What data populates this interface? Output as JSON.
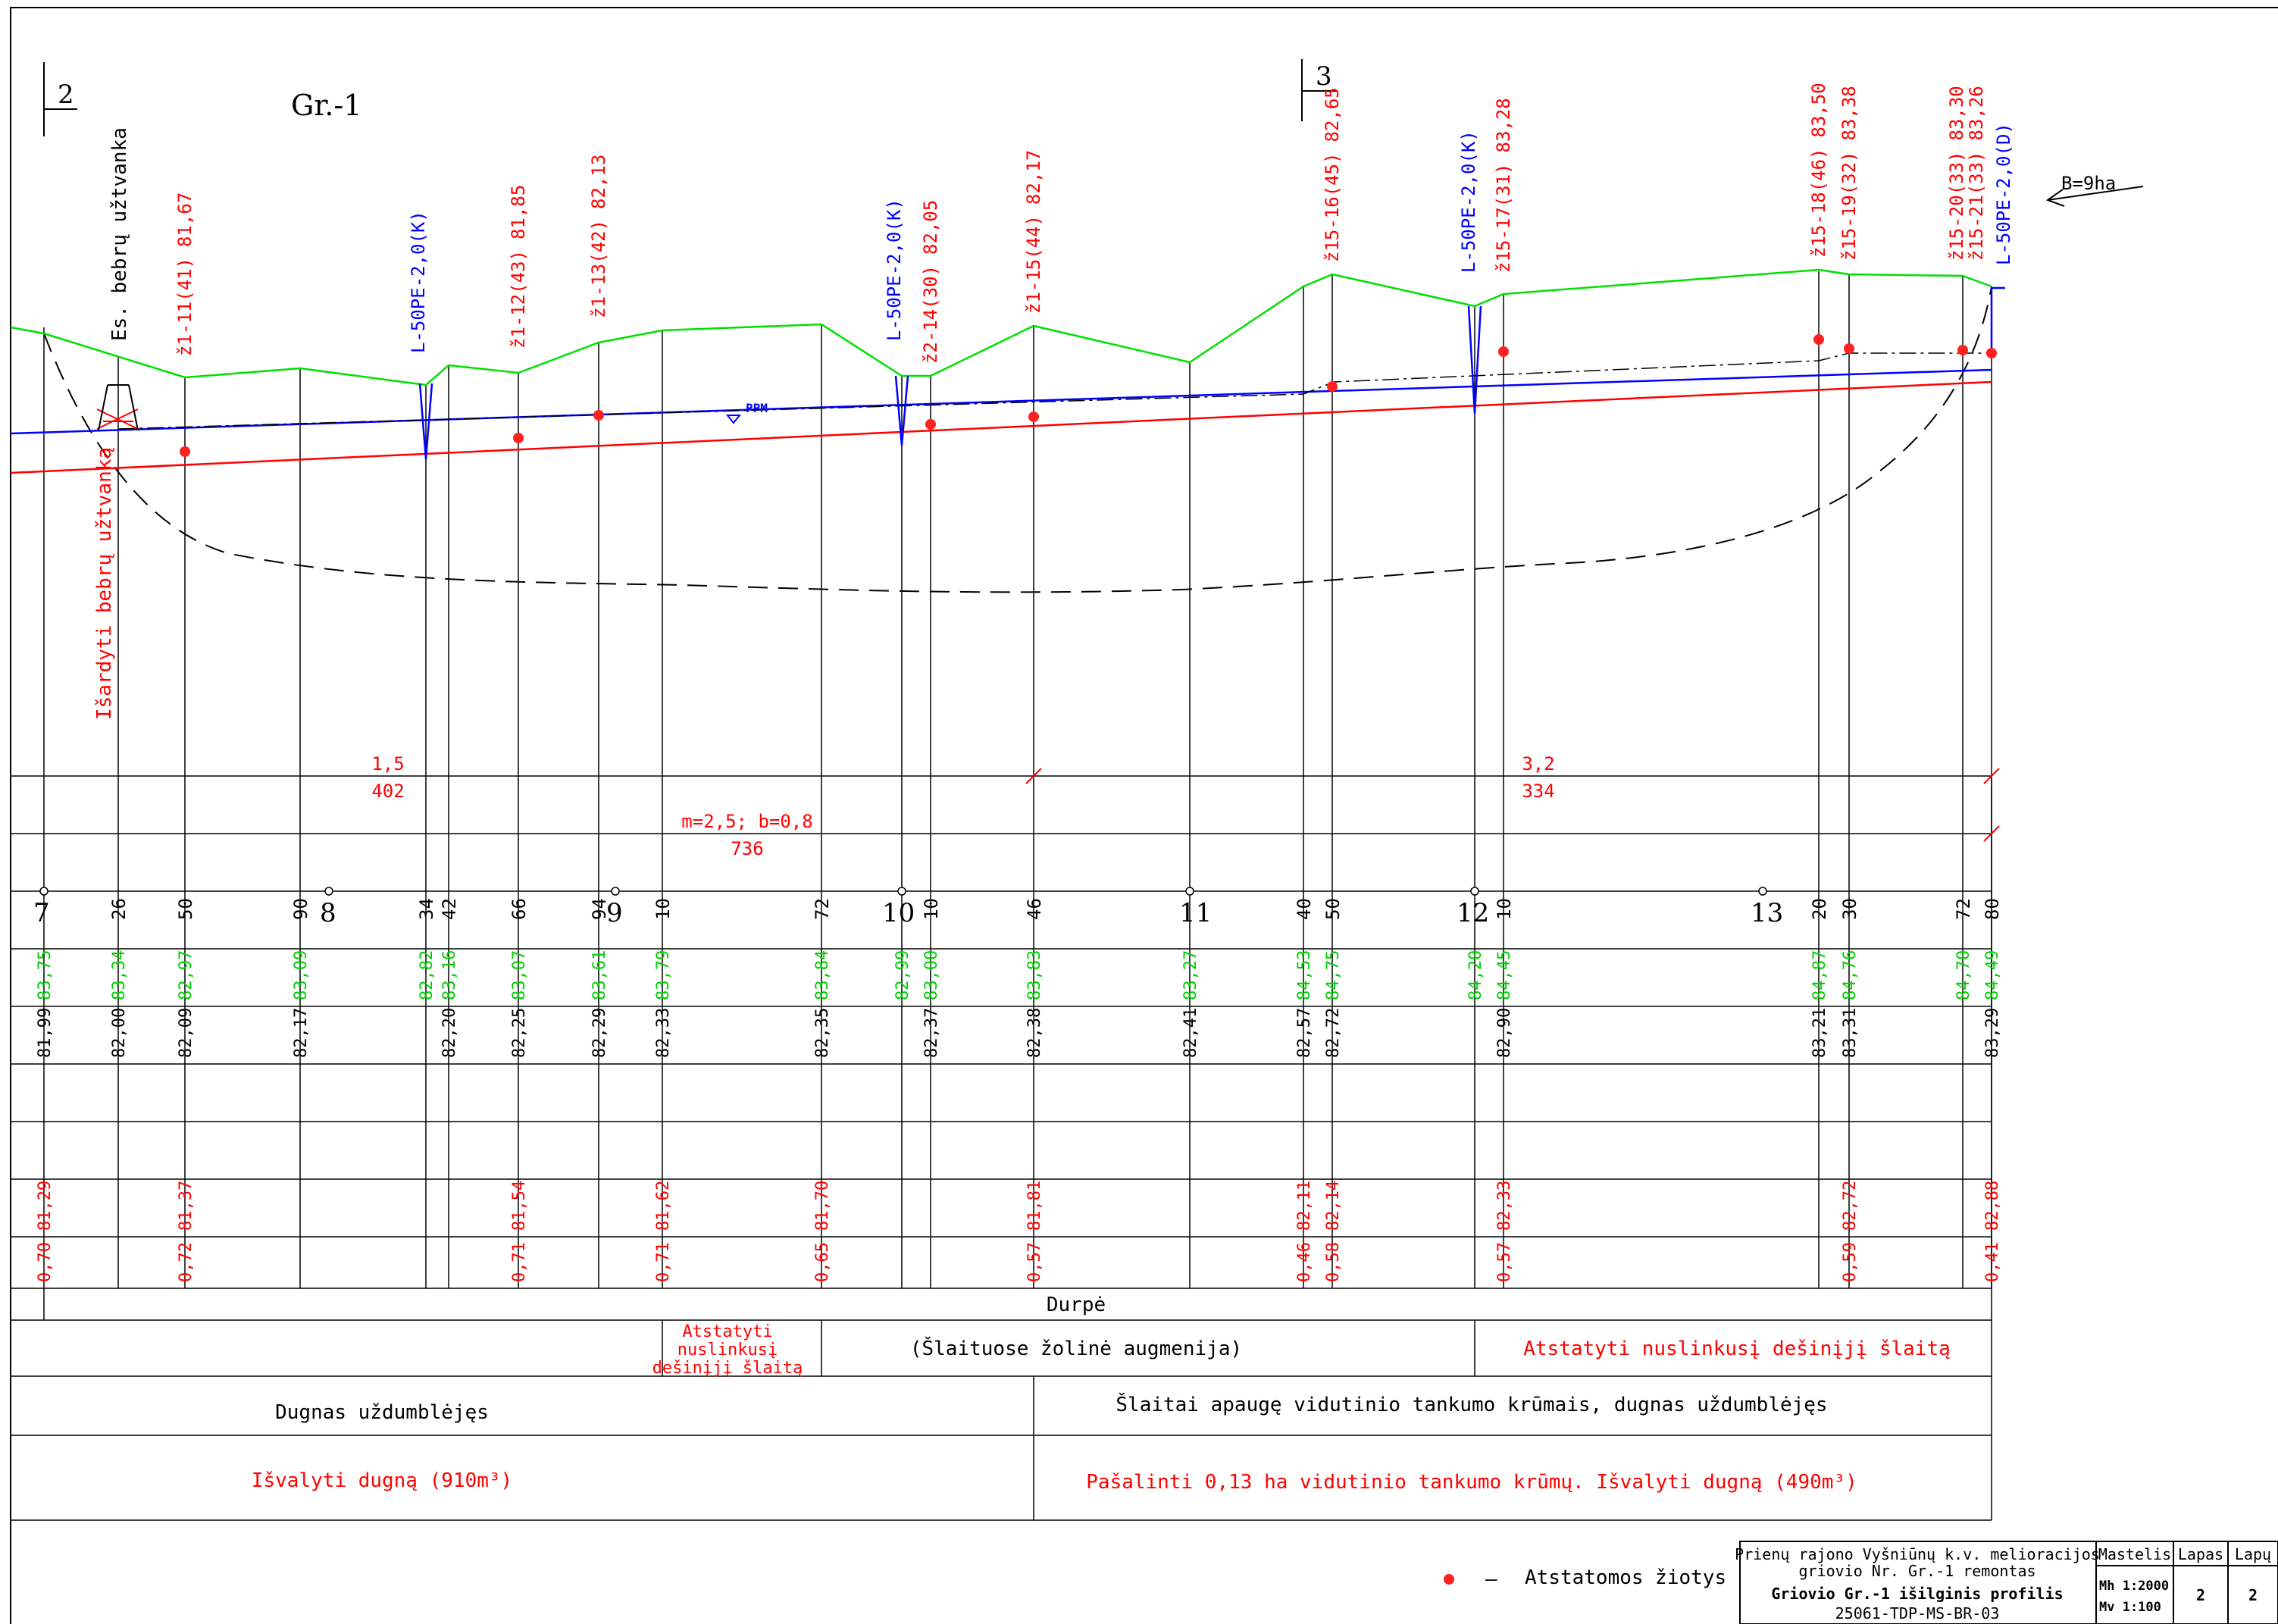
{
  "title": "Gr.-1",
  "section_marks": [
    {
      "label": "2"
    },
    {
      "label": "3"
    }
  ],
  "catchment": "B=9ha",
  "pkt": [
    "7",
    "8",
    "9",
    "10",
    "11",
    "12",
    "13"
  ],
  "beaver": {
    "existing": "Es. bebrų užtvanka",
    "remove": "Išardyti bebrų užtvanką"
  },
  "ppm": "PPM",
  "outlets": [
    {
      "id": "A",
      "label": "ž1-11(41)",
      "elev": "81,67"
    },
    {
      "id": "B",
      "label": "ž1-12(43)",
      "elev": "81,85"
    },
    {
      "id": "C",
      "label": "ž1-13(42)",
      "elev": "82,13"
    },
    {
      "id": "D",
      "label": "ž2-14(30)",
      "elev": "82,05"
    },
    {
      "id": "E",
      "label": "ž1-15(44)",
      "elev": "82,17"
    },
    {
      "id": "F",
      "label": "ž15-16(45)",
      "elev": "82,65"
    },
    {
      "id": "G",
      "label": "ž15-17(31)",
      "elev": "83,28"
    },
    {
      "id": "H",
      "label": "ž15-18(46)",
      "elev": "83,50"
    },
    {
      "id": "I",
      "label": "ž15-19(32)",
      "elev": "83,38"
    },
    {
      "id": "J",
      "label": "ž15-20(33)",
      "elev": "83,30"
    },
    {
      "id": "K",
      "label": "ž15-21(33)",
      "elev": "83,26"
    }
  ],
  "collectors": [
    {
      "label": "L-50PE-2,0(K)"
    },
    {
      "label": "L-50PE-2,0(K)"
    },
    {
      "label": "L-50PE-2,0(K)"
    },
    {
      "label": "L-50PE-2,0(D)"
    }
  ],
  "slope_segments": [
    {
      "slope": "1,5",
      "length": "402"
    },
    {
      "slope": "3,2",
      "length": "334"
    }
  ],
  "cross_section": {
    "params": "m=2,5;  b=0,8",
    "length": "736"
  },
  "distances": [
    "26",
    "50",
    "90",
    "34",
    "42",
    "66",
    "94",
    "10",
    "72",
    "10",
    "46",
    "40",
    "50",
    "10",
    "20",
    "30",
    "72",
    "80"
  ],
  "ground_elev": [
    "83,75",
    "83,34",
    "82,97",
    "83,09",
    "82,82",
    "83,16",
    "83,07",
    "83,61",
    "83,79",
    "83,84",
    "82,99",
    "83,00",
    "83,83",
    "83,27",
    "84,53",
    "84,75",
    "84,20",
    "84,45",
    "84,87",
    "84,76",
    "84,70",
    "84,49"
  ],
  "design_elev": [
    "81,99",
    "82,00",
    "82,09",
    "82,17",
    "82,20",
    "82,25",
    "82,29",
    "82,33",
    "82,35",
    "82,37",
    "82,38",
    "82,41",
    "82,57",
    "82,72",
    "82,90",
    "83,21",
    "83,31",
    "83,29"
  ],
  "existing_bottom": [
    "81,29",
    "81,37",
    "81,54",
    "81,62",
    "81,70",
    "81,81",
    "82,11",
    "82,14",
    "82,33",
    "82,72",
    "82,88"
  ],
  "depth": [
    "0,70",
    "0,72",
    "0,71",
    "0,71",
    "0,65",
    "0,57",
    "0,46",
    "0,58",
    "0,57",
    "0,59",
    "0,41"
  ],
  "soil": "Durpė",
  "notes": {
    "restore_short_1": "Atstatyti",
    "restore_short_2": "nuslinkusį",
    "restore_short_3": "dešinįjį šlaitą",
    "vegetation": "(Šlaituose žolinė augmenija)",
    "restore_right": "Atstatyti nuslinkusį dešinįjį šlaitą",
    "state_left": "Dugnas uždumblėjęs",
    "state_right": "Šlaitai apaugę vidutinio tankumo krūmais, dugnas uždumblėjęs",
    "work_left": "Išvalyti dugną (910m³)",
    "work_right": "Pašalinti 0,13 ha vidutinio tankumo krūmų. Išvalyti dugną (490m³)"
  },
  "legend": {
    "dash": "–",
    "text": "Atstatomos žiotys"
  },
  "title_block": {
    "line1": "Prienų rajono Vyšniūnų k.v. melioracijos",
    "line2": "griovio Nr. Gr.-1 remontas",
    "line3": "Griovio Gr.-1 išilginis profilis",
    "line4": "25061-TDP-MS-BR-03",
    "scale_hdr": "Mastelis",
    "sheet_hdr": "Lapas",
    "sheets_hdr": "Lapų",
    "mh": "Mh 1:2000",
    "mv": "Mv 1:100",
    "sheet": "2",
    "sheets": "2"
  },
  "colors": {
    "ground": "#00e000",
    "design": "#ff0000",
    "water": "#0000ff",
    "text_red": "#ff0000",
    "text_green": "#00c000",
    "text_blue": "#0000ff"
  }
}
